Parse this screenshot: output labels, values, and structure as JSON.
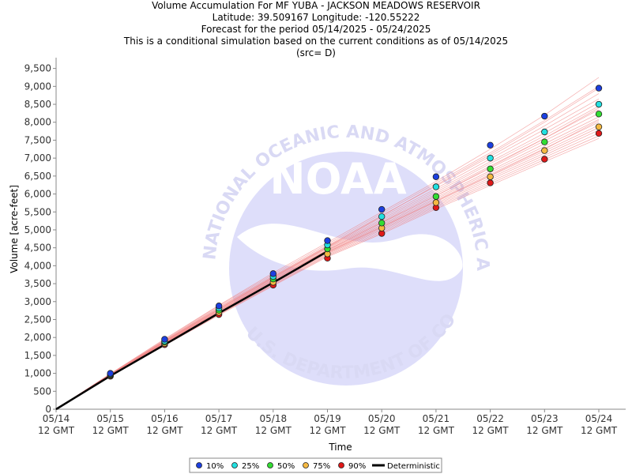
{
  "header": {
    "title": "Volume Accumulation For MF YUBA - JACKSON MEADOWS RESERVOIR",
    "location": "Latitude: 39.509167 Longitude: -120.55222",
    "period": "Forecast for the period 05/14/2025 - 05/24/2025",
    "note": "This is a conditional simulation based on the current conditions as of 05/14/2025",
    "source": "(src= D)"
  },
  "watermark": {
    "logo_text": "NOAA",
    "ring_top": "NATIONAL OCEANIC AND ATMOSPHERIC ADMINISTRATION",
    "ring_bottom": "U.S. DEPARTMENT OF COMMERCE"
  },
  "colors": {
    "p10": "#1c3fe0",
    "p25": "#22e0e0",
    "p50": "#33dd33",
    "p75": "#f5b942",
    "p90": "#e01818",
    "deterministic": "#000000",
    "traces": "#f08080"
  },
  "chart_data": {
    "type": "line",
    "xlabel": "Time",
    "ylabel": "Volume [acre-feet]",
    "x_categories": [
      "05/14\n12 GMT",
      "05/15\n12 GMT",
      "05/16\n12 GMT",
      "05/17\n12 GMT",
      "05/18\n12 GMT",
      "05/19\n12 GMT",
      "05/20\n12 GMT",
      "05/21\n12 GMT",
      "05/22\n12 GMT",
      "05/23\n12 GMT",
      "05/24\n12 GMT"
    ],
    "ylim": [
      0,
      9800
    ],
    "yticks": [
      0,
      500,
      1000,
      1500,
      2000,
      2500,
      3000,
      3500,
      4000,
      4500,
      5000,
      5500,
      6000,
      6500,
      7000,
      7500,
      8000,
      8500,
      9000,
      9500
    ],
    "series": [
      {
        "name": "10%",
        "marker": "point",
        "values": [
          null,
          1000,
          1950,
          2880,
          3780,
          4700,
          5570,
          6480,
          7360,
          8170,
          8950
        ]
      },
      {
        "name": "25%",
        "marker": "point",
        "values": [
          null,
          980,
          1900,
          2820,
          3700,
          4580,
          5370,
          6200,
          7000,
          7730,
          8500
        ]
      },
      {
        "name": "50%",
        "marker": "point",
        "values": [
          null,
          960,
          1870,
          2760,
          3630,
          4470,
          5190,
          5930,
          6700,
          7450,
          8230
        ]
      },
      {
        "name": "75%",
        "marker": "point",
        "values": [
          null,
          940,
          1830,
          2700,
          3540,
          4330,
          5050,
          5760,
          6480,
          7210,
          7870
        ]
      },
      {
        "name": "90%",
        "marker": "point",
        "values": [
          null,
          920,
          1800,
          2640,
          3460,
          4210,
          4900,
          5620,
          6310,
          6970,
          7690
        ]
      },
      {
        "name": "Deterministic",
        "marker": "line",
        "values": [
          0,
          930,
          1800,
          2680,
          3530,
          4400,
          null,
          null,
          null,
          null,
          null
        ]
      }
    ],
    "ensemble_traces": [
      [
        0,
        990,
        1960,
        2900,
        3800,
        4650,
        5500,
        6350,
        7250,
        8200,
        9250
      ],
      [
        0,
        985,
        1940,
        2880,
        3760,
        4600,
        5450,
        6300,
        7150,
        8050,
        9000
      ],
      [
        0,
        980,
        1920,
        2850,
        3720,
        4560,
        5400,
        6220,
        7050,
        7900,
        8800
      ],
      [
        0,
        975,
        1910,
        2830,
        3700,
        4540,
        5350,
        6150,
        6980,
        7800,
        8650
      ],
      [
        0,
        970,
        1900,
        2810,
        3680,
        4520,
        5300,
        6100,
        6900,
        7700,
        8550
      ],
      [
        0,
        965,
        1890,
        2790,
        3660,
        4500,
        5260,
        6050,
        6850,
        7620,
        8450
      ],
      [
        0,
        960,
        1880,
        2780,
        3640,
        4480,
        5220,
        6000,
        6780,
        7550,
        8350
      ],
      [
        0,
        955,
        1870,
        2760,
        3620,
        4450,
        5190,
        5950,
        6720,
        7480,
        8250
      ],
      [
        0,
        950,
        1860,
        2740,
        3600,
        4430,
        5150,
        5900,
        6650,
        7400,
        8150
      ],
      [
        0,
        945,
        1850,
        2730,
        3580,
        4410,
        5120,
        5860,
        6600,
        7330,
        8080
      ],
      [
        0,
        940,
        1840,
        2710,
        3560,
        4390,
        5090,
        5820,
        6550,
        7270,
        8000
      ],
      [
        0,
        935,
        1830,
        2700,
        3540,
        4370,
        5060,
        5780,
        6500,
        7200,
        7920
      ],
      [
        0,
        930,
        1820,
        2690,
        3520,
        4350,
        5030,
        5740,
        6450,
        7140,
        7850
      ],
      [
        0,
        925,
        1810,
        2670,
        3500,
        4330,
        5000,
        5700,
        6400,
        7080,
        7780
      ],
      [
        0,
        920,
        1800,
        2650,
        3480,
        4300,
        4960,
        5660,
        6340,
        7020,
        7700
      ],
      [
        0,
        915,
        1790,
        2640,
        3460,
        4280,
        4920,
        5620,
        6290,
        6960,
        7620
      ],
      [
        0,
        910,
        1780,
        2620,
        3440,
        4250,
        4890,
        5580,
        6240,
        6900,
        7550
      ],
      [
        0,
        950,
        1880,
        2790,
        3680,
        4520,
        5380,
        6250,
        7100,
        8000,
        8950
      ],
      [
        0,
        940,
        1850,
        2740,
        3600,
        4440,
        5200,
        5950,
        6750,
        7550,
        8400
      ],
      [
        0,
        930,
        1830,
        2710,
        3550,
        4380,
        5080,
        5800,
        6520,
        7250,
        8050
      ]
    ],
    "legend": {
      "placement": "bottom",
      "entries": [
        "10%",
        "25%",
        "50%",
        "75%",
        "90%",
        "Deterministic"
      ]
    },
    "grid": false
  }
}
